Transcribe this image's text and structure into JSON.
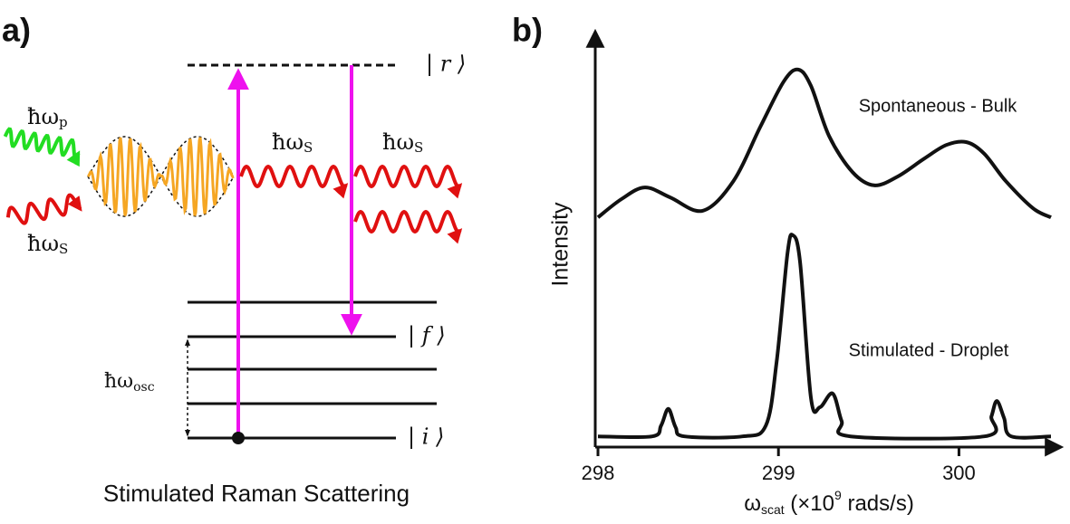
{
  "panel_a": {
    "label": "a)",
    "pump": {
      "text": "ħω",
      "sub": "p"
    },
    "stokes_in": {
      "text": "ħω",
      "sub": "S"
    },
    "stokes_out_1": {
      "text": "ħω",
      "sub": "S"
    },
    "stokes_out_2": {
      "text": "ħω",
      "sub": "S"
    },
    "osc": {
      "text": "ħω",
      "sub": "osc"
    },
    "level_r": "| r ⟩",
    "level_f": "| f ⟩",
    "level_i": "| i ⟩",
    "caption": "Stimulated Raman Scattering"
  },
  "chart_data": {
    "type": "line",
    "label": "b)",
    "ylabel": "Intensity",
    "xlabel": {
      "symbol": "ω",
      "sub": "scat",
      "before_sup": " (×10",
      "sup": "9",
      "after_sup": " rads/s)"
    },
    "xlim": [
      297.985,
      300.56
    ],
    "xticks": [
      298,
      299,
      300
    ],
    "ylim": [
      0,
      1
    ],
    "annotations": [
      "Spontaneous - Bulk",
      "Stimulated - Droplet"
    ],
    "series": [
      {
        "name": "Spontaneous - Bulk",
        "color": "#111111",
        "x": [
          298.0,
          298.13,
          298.26,
          298.4,
          298.58,
          298.75,
          298.9,
          299.03,
          299.11,
          299.18,
          299.28,
          299.41,
          299.53,
          299.66,
          299.81,
          299.93,
          300.04,
          300.14,
          300.26,
          300.41,
          300.51
        ],
        "values": [
          0.543,
          0.587,
          0.615,
          0.591,
          0.559,
          0.63,
          0.761,
          0.87,
          0.898,
          0.859,
          0.739,
          0.652,
          0.62,
          0.641,
          0.685,
          0.717,
          0.724,
          0.696,
          0.63,
          0.565,
          0.543
        ]
      },
      {
        "name": "Stimulated - Droplet",
        "color": "#111111",
        "x": [
          298.0,
          298.3,
          298.35,
          298.39,
          298.43,
          298.48,
          298.8,
          298.93,
          298.99,
          299.05,
          299.08,
          299.12,
          299.18,
          299.23,
          299.3,
          299.35,
          299.4,
          300.14,
          300.18,
          300.21,
          300.25,
          300.29,
          300.51
        ],
        "values": [
          0.017,
          0.017,
          0.043,
          0.083,
          0.039,
          0.017,
          0.017,
          0.043,
          0.196,
          0.457,
          0.5,
          0.435,
          0.109,
          0.087,
          0.12,
          0.054,
          0.017,
          0.017,
          0.065,
          0.102,
          0.061,
          0.017,
          0.017
        ]
      }
    ]
  }
}
